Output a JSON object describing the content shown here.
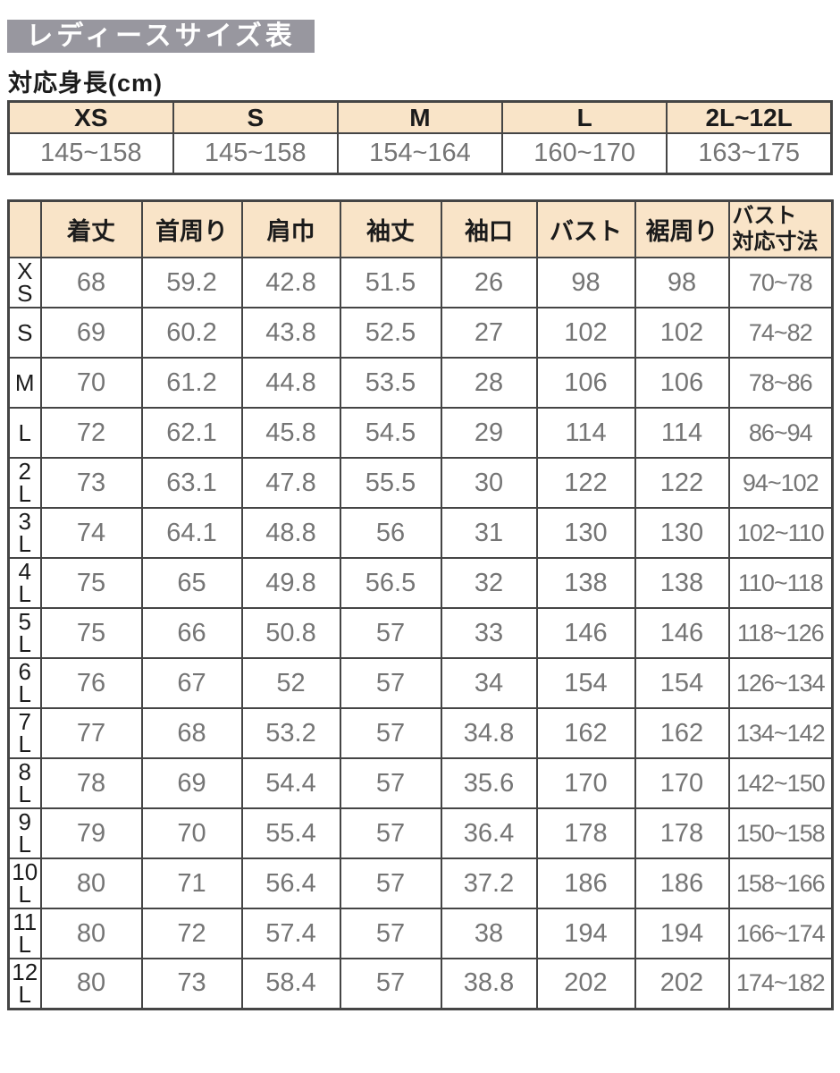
{
  "page": {
    "title": "レディースサイズ表",
    "height_heading": "対応身長(cm)"
  },
  "colors": {
    "title_bar_bg": "#98979f",
    "title_text": "#ffffff",
    "header_bg": "#f9e4c8",
    "border": "#454545",
    "header_text": "#1b1b1b",
    "value_text": "#757575"
  },
  "height_table": {
    "columns": [
      "XS",
      "S",
      "M",
      "L",
      "2L~12L"
    ],
    "values": [
      "145~158",
      "145~158",
      "154~164",
      "160~170",
      "163~175"
    ]
  },
  "size_table": {
    "column_headers": [
      "着丈",
      "首周り",
      "肩巾",
      "袖丈",
      "袖口",
      "バスト",
      "裾周り"
    ],
    "last_column_header": {
      "line1": "バスト",
      "line2": "対応寸法"
    },
    "rows": [
      {
        "size": "XS",
        "values": [
          "68",
          "59.2",
          "42.8",
          "51.5",
          "26",
          "98",
          "98",
          "70~78"
        ]
      },
      {
        "size": "S",
        "values": [
          "69",
          "60.2",
          "43.8",
          "52.5",
          "27",
          "102",
          "102",
          "74~82"
        ]
      },
      {
        "size": "M",
        "values": [
          "70",
          "61.2",
          "44.8",
          "53.5",
          "28",
          "106",
          "106",
          "78~86"
        ]
      },
      {
        "size": "L",
        "values": [
          "72",
          "62.1",
          "45.8",
          "54.5",
          "29",
          "114",
          "114",
          "86~94"
        ]
      },
      {
        "size": "2L",
        "values": [
          "73",
          "63.1",
          "47.8",
          "55.5",
          "30",
          "122",
          "122",
          "94~102"
        ]
      },
      {
        "size": "3L",
        "values": [
          "74",
          "64.1",
          "48.8",
          "56",
          "31",
          "130",
          "130",
          "102~110"
        ]
      },
      {
        "size": "4L",
        "values": [
          "75",
          "65",
          "49.8",
          "56.5",
          "32",
          "138",
          "138",
          "110~118"
        ]
      },
      {
        "size": "5L",
        "values": [
          "75",
          "66",
          "50.8",
          "57",
          "33",
          "146",
          "146",
          "118~126"
        ]
      },
      {
        "size": "6L",
        "values": [
          "76",
          "67",
          "52",
          "57",
          "34",
          "154",
          "154",
          "126~134"
        ]
      },
      {
        "size": "7L",
        "values": [
          "77",
          "68",
          "53.2",
          "57",
          "34.8",
          "162",
          "162",
          "134~142"
        ]
      },
      {
        "size": "8L",
        "values": [
          "78",
          "69",
          "54.4",
          "57",
          "35.6",
          "170",
          "170",
          "142~150"
        ]
      },
      {
        "size": "9L",
        "values": [
          "79",
          "70",
          "55.4",
          "57",
          "36.4",
          "178",
          "178",
          "150~158"
        ]
      },
      {
        "size": "10L",
        "values": [
          "80",
          "71",
          "56.4",
          "57",
          "37.2",
          "186",
          "186",
          "158~166"
        ]
      },
      {
        "size": "11L",
        "values": [
          "80",
          "72",
          "57.4",
          "57",
          "38",
          "194",
          "194",
          "166~174"
        ]
      },
      {
        "size": "12L",
        "values": [
          "80",
          "73",
          "58.4",
          "57",
          "38.8",
          "202",
          "202",
          "174~182"
        ]
      }
    ]
  }
}
